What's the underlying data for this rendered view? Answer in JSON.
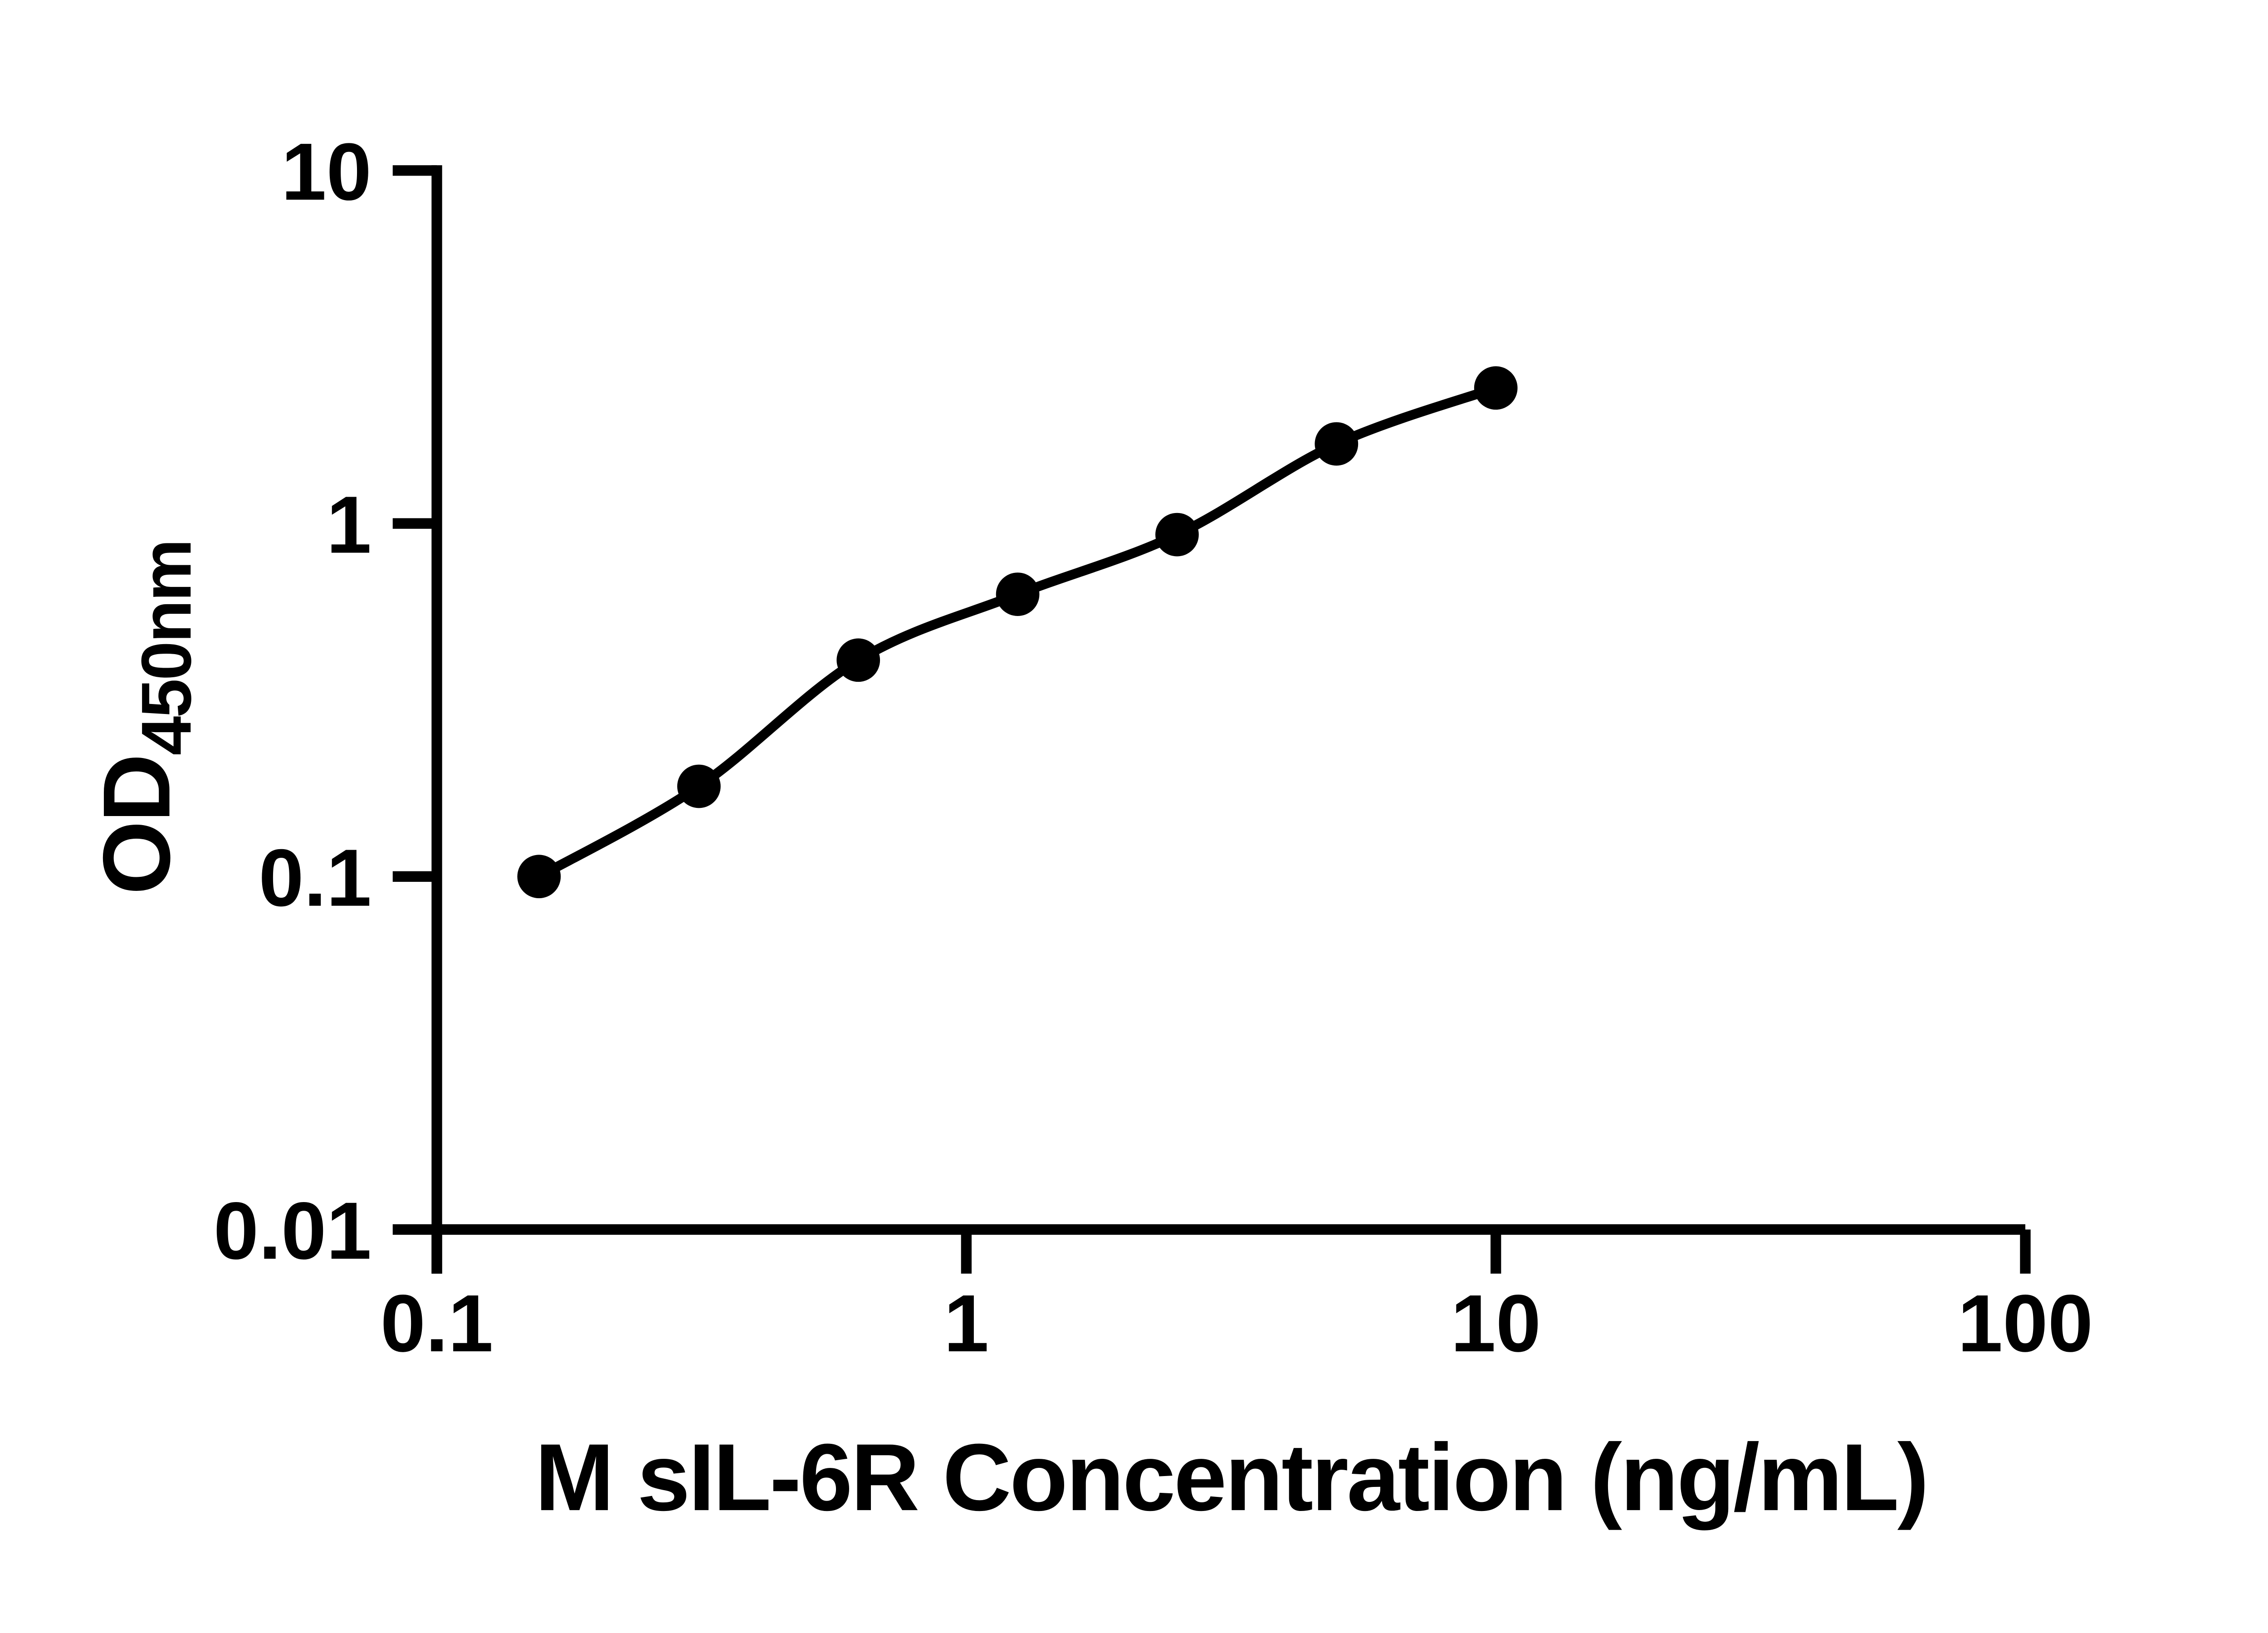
{
  "figure": {
    "background_color": "#ffffff",
    "ink_color": "#000000",
    "description": "ELISA standard curve, black dots with fitted line on log-log axes"
  },
  "chart_data": {
    "type": "scatter",
    "title": "",
    "xlabel": "M sIL-6R Concentration (ng/mL)",
    "ylabel": "OD",
    "ylabel_subscript": "450nm",
    "x_scale": "log",
    "y_scale": "log",
    "xlim": [
      0.1,
      100
    ],
    "ylim": [
      0.01,
      10
    ],
    "grid": false,
    "legend": "none",
    "x_ticks": [
      {
        "value": 0.1,
        "label": "0.1"
      },
      {
        "value": 1,
        "label": "1"
      },
      {
        "value": 10,
        "label": "10"
      },
      {
        "value": 100,
        "label": "100"
      }
    ],
    "y_ticks": [
      {
        "value": 0.01,
        "label": "0.01"
      },
      {
        "value": 0.1,
        "label": "0.1"
      },
      {
        "value": 1,
        "label": "1"
      },
      {
        "value": 10,
        "label": "10"
      }
    ],
    "series": [
      {
        "name": "standard-curve",
        "marker": "circle",
        "marker_color": "#000000",
        "line_color": "#000000",
        "fit_line": true,
        "points": [
          {
            "x": 0.156,
            "y": 0.1
          },
          {
            "x": 0.3125,
            "y": 0.18
          },
          {
            "x": 0.625,
            "y": 0.41
          },
          {
            "x": 1.25,
            "y": 0.63
          },
          {
            "x": 2.5,
            "y": 0.93
          },
          {
            "x": 5,
            "y": 1.68
          },
          {
            "x": 10,
            "y": 2.42
          }
        ]
      }
    ]
  }
}
